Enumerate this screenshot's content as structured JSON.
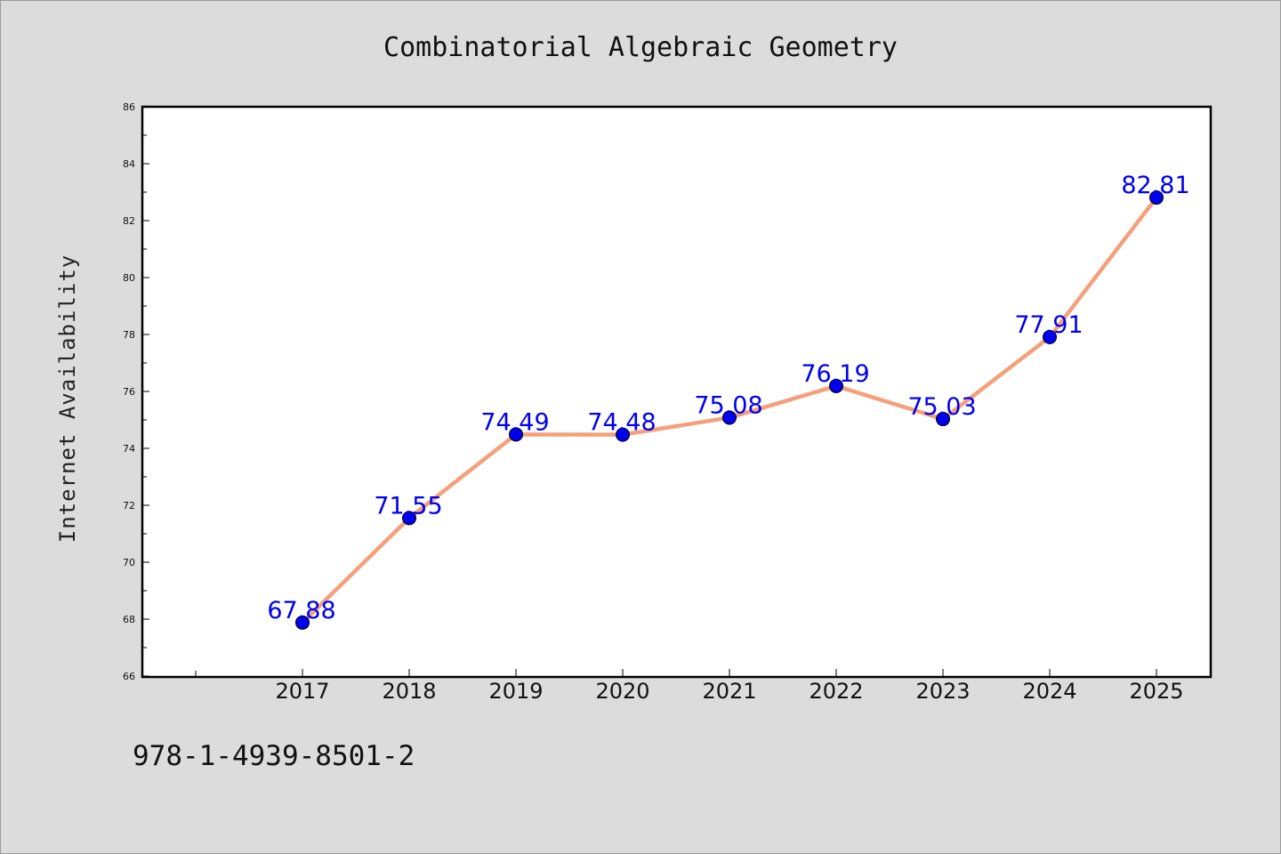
{
  "chart_data": {
    "type": "line",
    "title": "Combinatorial Algebraic Geometry",
    "xlabel": "",
    "ylabel": "Internet Availability",
    "categories": [
      "2017",
      "2018",
      "2019",
      "2020",
      "2021",
      "2022",
      "2023",
      "2024",
      "2025"
    ],
    "series": [
      {
        "values": [
          67.88,
          71.55,
          74.49,
          74.48,
          75.08,
          76.19,
          75.03,
          77.91,
          82.81
        ]
      }
    ],
    "data_labels": [
      "67.88",
      "71.55",
      "74.49",
      "74.48",
      "75.08",
      "76.19",
      "75.03",
      "77.91",
      "82.81"
    ],
    "yticks": [
      66,
      68,
      70,
      72,
      74,
      76,
      78,
      80,
      82,
      84,
      86
    ],
    "ylim": [
      66,
      86
    ],
    "grid": false,
    "legend": "none",
    "colors": {
      "line": "#f4a07c",
      "marker": "#0000ee",
      "label": "#0000ee",
      "background": "#dcdcdc",
      "plot_bg": "#ffffff"
    }
  },
  "footer": {
    "isbn": "978-1-4939-8501-2"
  }
}
